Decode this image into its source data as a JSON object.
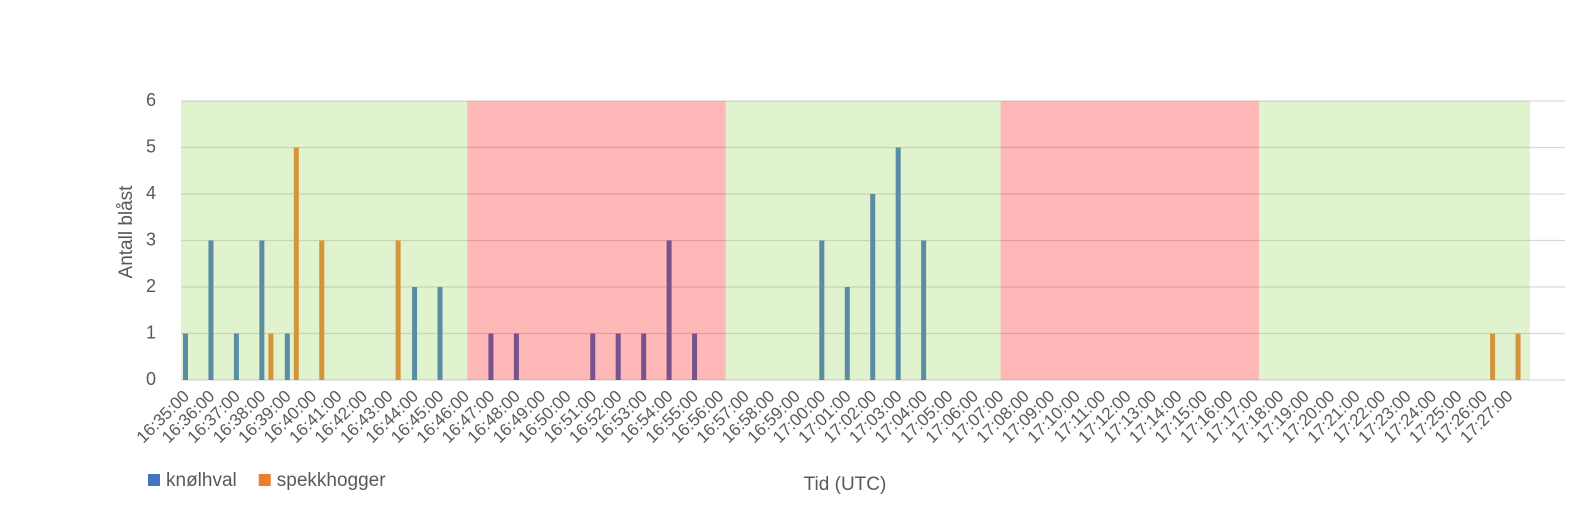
{
  "chart_data": {
    "type": "bar",
    "x_label": "Tid (UTC)",
    "y_label": "Antall blåst",
    "categories": [
      "16:35:00",
      "16:36:00",
      "16:37:00",
      "16:38:00",
      "16:39:00",
      "16:40:00",
      "16:41:00",
      "16:42:00",
      "16:43:00",
      "16:44:00",
      "16:45:00",
      "16:46:00",
      "16:47:00",
      "16:48:00",
      "16:49:00",
      "16:50:00",
      "16:51:00",
      "16:52:00",
      "16:53:00",
      "16:54:00",
      "16:55:00",
      "16:56:00",
      "16:57:00",
      "16:58:00",
      "16:59:00",
      "17:00:00",
      "17:01:00",
      "17:02:00",
      "17:03:00",
      "17:04:00",
      "17:05:00",
      "17:06:00",
      "17:07:00",
      "17:08:00",
      "17:09:00",
      "17:10:00",
      "17:11:00",
      "17:12:00",
      "17:13:00",
      "17:14:00",
      "17:15:00",
      "17:16:00",
      "17:17:00",
      "17:18:00",
      "17:19:00",
      "17:20:00",
      "17:21:00",
      "17:22:00",
      "17:23:00",
      "17:24:00",
      "17:25:00",
      "17:26:00",
      "17:27:00"
    ],
    "series": [
      {
        "name": "knølhval",
        "color": "#4472c4",
        "values": [
          1,
          3,
          1,
          3,
          1,
          null,
          null,
          null,
          null,
          2,
          2,
          null,
          1,
          1,
          null,
          null,
          1,
          1,
          1,
          3,
          1,
          null,
          null,
          null,
          null,
          3,
          2,
          4,
          5,
          3,
          null,
          null,
          null,
          null,
          null,
          null,
          null,
          null,
          null,
          null,
          null,
          null,
          null,
          null,
          null,
          null,
          null,
          null,
          null,
          null,
          null,
          null,
          null
        ]
      },
      {
        "name": "spekkhogger",
        "color": "#ed7d31",
        "values": [
          null,
          null,
          null,
          1,
          5,
          3,
          null,
          null,
          3,
          null,
          null,
          null,
          null,
          null,
          null,
          null,
          null,
          null,
          null,
          null,
          null,
          null,
          null,
          null,
          null,
          null,
          null,
          null,
          null,
          null,
          null,
          null,
          null,
          null,
          null,
          null,
          null,
          null,
          null,
          null,
          null,
          null,
          null,
          null,
          null,
          null,
          null,
          null,
          null,
          null,
          null,
          1,
          1
        ]
      }
    ],
    "regions": [
      {
        "start": 0,
        "end": 11.25,
        "color": "#92d050"
      },
      {
        "start": 11.25,
        "end": 21.4,
        "color": "#ff0000"
      },
      {
        "start": 21.4,
        "end": 32.2,
        "color": "#92d050"
      },
      {
        "start": 32.2,
        "end": 42.35,
        "color": "#ff0000"
      },
      {
        "start": 42.35,
        "end": 53,
        "color": "#92d050"
      }
    ],
    "ylim": [
      0,
      6
    ],
    "yticks": [
      0,
      1,
      2,
      3,
      4,
      5,
      6
    ],
    "grid": true,
    "legend": "bottom-left"
  }
}
